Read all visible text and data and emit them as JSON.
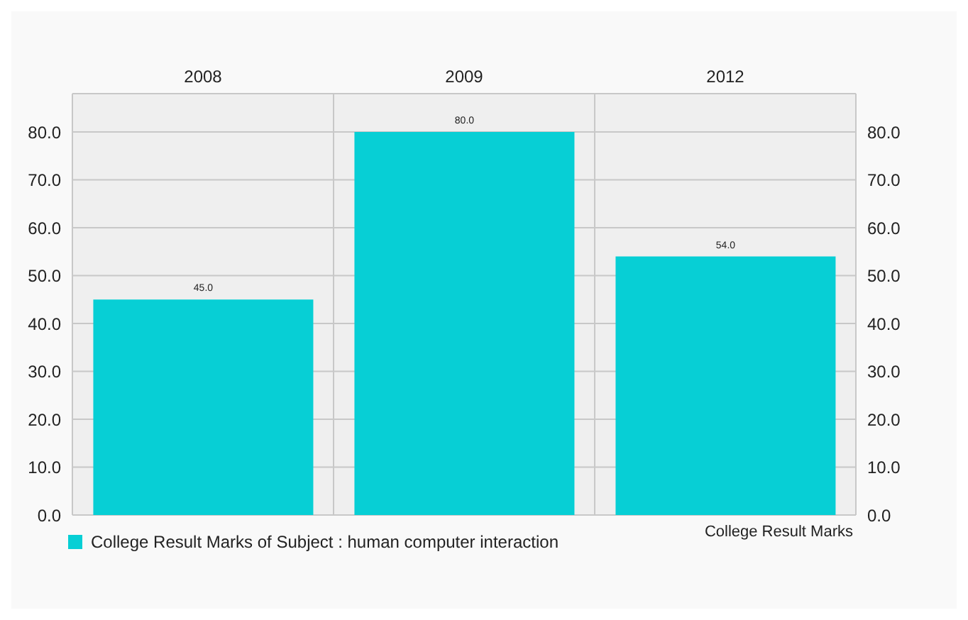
{
  "chart_data": {
    "type": "bar",
    "categories": [
      "2008",
      "2009",
      "2012"
    ],
    "series": [
      {
        "name": "College Result Marks of Subject : human computer interaction",
        "color": "#07cfd5",
        "values": [
          45,
          80,
          54
        ],
        "value_labels": [
          "45.0",
          "80.0",
          "54.0"
        ]
      }
    ],
    "ylim": [
      0,
      88
    ],
    "yticks": [
      {
        "value": 0,
        "label": "0.0"
      },
      {
        "value": 10,
        "label": "10.0"
      },
      {
        "value": 20,
        "label": "20.0"
      },
      {
        "value": 30,
        "label": "30.0"
      },
      {
        "value": 40,
        "label": "40.0"
      },
      {
        "value": 50,
        "label": "50.0"
      },
      {
        "value": 60,
        "label": "60.0"
      },
      {
        "value": 70,
        "label": "70.0"
      },
      {
        "value": 80,
        "label": "80.0"
      }
    ],
    "y2lim": [
      0,
      88
    ],
    "y2ticks": [
      {
        "value": 0,
        "label": "0.0"
      },
      {
        "value": 10,
        "label": "10.0"
      },
      {
        "value": 20,
        "label": "20.0"
      },
      {
        "value": 30,
        "label": "30.0"
      },
      {
        "value": 40,
        "label": "40.0"
      },
      {
        "value": 50,
        "label": "50.0"
      },
      {
        "value": 60,
        "label": "60.0"
      },
      {
        "value": 70,
        "label": "70.0"
      },
      {
        "value": 80,
        "label": "80.0"
      }
    ],
    "grid": true,
    "legend": "bottom left",
    "annotations": [
      "College Result Marks"
    ]
  }
}
